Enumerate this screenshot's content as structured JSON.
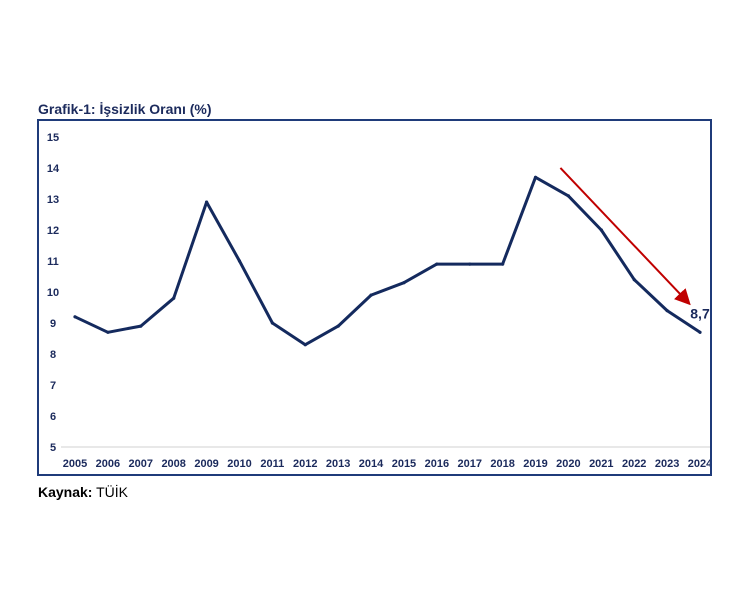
{
  "source": {
    "label": "Kaynak:",
    "value": "TÜİK"
  },
  "chart_data": {
    "type": "line",
    "title": "Grafik-1: İşsizlik Oranı (%)",
    "xlabel": "",
    "ylabel": "",
    "categories": [
      "2005",
      "2006",
      "2007",
      "2008",
      "2009",
      "2010",
      "2011",
      "2012",
      "2013",
      "2014",
      "2015",
      "2016",
      "2017",
      "2018",
      "2019",
      "2020",
      "2021",
      "2022",
      "2023",
      "2024"
    ],
    "series": [
      {
        "values": [
          9.2,
          8.7,
          8.9,
          9.8,
          12.9,
          11.0,
          9.0,
          8.3,
          8.9,
          9.9,
          10.3,
          10.9,
          10.9,
          10.9,
          13.7,
          13.1,
          12.0,
          10.4,
          9.4,
          8.7
        ],
        "color": "#142a5e"
      }
    ],
    "ylim": [
      5,
      15
    ],
    "yticks": [
      5,
      6,
      7,
      8,
      9,
      10,
      11,
      12,
      13,
      14,
      15
    ],
    "grid": false,
    "annotations": [
      {
        "type": "label",
        "text": "8,7",
        "at": "2024"
      },
      {
        "type": "trend-arrow",
        "from": "2020",
        "to": "2024",
        "color": "#c00000"
      }
    ]
  }
}
